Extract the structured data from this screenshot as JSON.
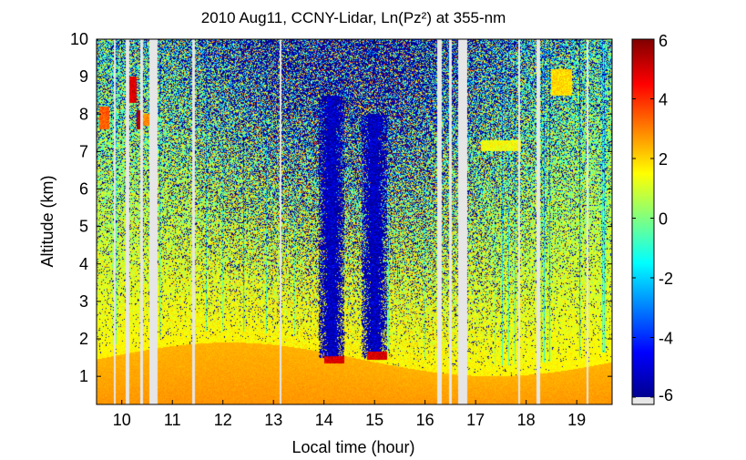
{
  "chart_data": {
    "type": "heatmap",
    "title": "2010 Aug11, CCNY-Lidar, Ln(Pz²) at 355-nm",
    "xlabel": "Local time (hour)",
    "ylabel": "Altitude (km)",
    "xlim": [
      9.5,
      19.7
    ],
    "ylim": [
      0.25,
      10
    ],
    "x_ticks": [
      "10",
      "11",
      "12",
      "13",
      "14",
      "15",
      "16",
      "17",
      "18",
      "19"
    ],
    "y_ticks": [
      "1",
      "2",
      "3",
      "4",
      "5",
      "6",
      "7",
      "8",
      "9",
      "10"
    ],
    "colorbar": {
      "range": [
        -6,
        6
      ],
      "ticks": [
        "6",
        "4",
        "2",
        "0",
        "-2",
        "-4",
        "-6"
      ],
      "colormap": "jet",
      "nodata_color": "#e6e6e6"
    },
    "gaps": [
      [
        9.84,
        9.88
      ],
      [
        10.07,
        10.15
      ],
      [
        10.36,
        10.42
      ],
      [
        10.54,
        10.7
      ],
      [
        11.4,
        11.44
      ],
      [
        13.12,
        13.16
      ],
      [
        16.24,
        16.33
      ],
      [
        16.47,
        16.52
      ],
      [
        16.66,
        16.84
      ],
      [
        17.84,
        17.88
      ],
      [
        18.2,
        18.28
      ],
      [
        19.2,
        19.24
      ]
    ],
    "features": [
      {
        "type": "boundary-layer",
        "x": [
          9.5,
          19.7
        ],
        "altitude_top_km": [
          1.0,
          1.9
        ],
        "value": 2.8
      },
      {
        "type": "low-signal-column",
        "x": [
          13.9,
          14.4
        ],
        "altitude_km": [
          1.5,
          8.5
        ]
      },
      {
        "type": "low-signal-column",
        "x": [
          14.75,
          15.25
        ],
        "altitude_km": [
          1.5,
          8.0
        ]
      },
      {
        "type": "cloud",
        "x": [
          10.1,
          10.3
        ],
        "altitude_km": [
          8.3,
          9.0
        ],
        "value": 5.5
      },
      {
        "type": "cloud",
        "x": [
          10.3,
          10.4
        ],
        "altitude_km": [
          7.6,
          8.1
        ],
        "value": 6
      },
      {
        "type": "cloud",
        "x": [
          9.55,
          9.75
        ],
        "altitude_km": [
          7.6,
          8.2
        ],
        "value": 4
      },
      {
        "type": "cloud",
        "x": [
          10.4,
          10.55
        ],
        "altitude_km": [
          7.7,
          8.0
        ],
        "value": 3.5
      },
      {
        "type": "cloud",
        "x": [
          14.0,
          14.4
        ],
        "altitude_km": [
          1.35,
          1.55
        ],
        "value": 5.5
      },
      {
        "type": "cloud",
        "x": [
          14.85,
          15.25
        ],
        "altitude_km": [
          1.45,
          1.65
        ],
        "value": 5.5
      },
      {
        "type": "cloud",
        "x": [
          18.5,
          18.9
        ],
        "altitude_km": [
          8.5,
          9.2
        ],
        "value": 2.5
      },
      {
        "type": "cloud",
        "x": [
          17.1,
          17.9
        ],
        "altitude_km": [
          7.0,
          7.3
        ],
        "value": 2
      }
    ]
  }
}
